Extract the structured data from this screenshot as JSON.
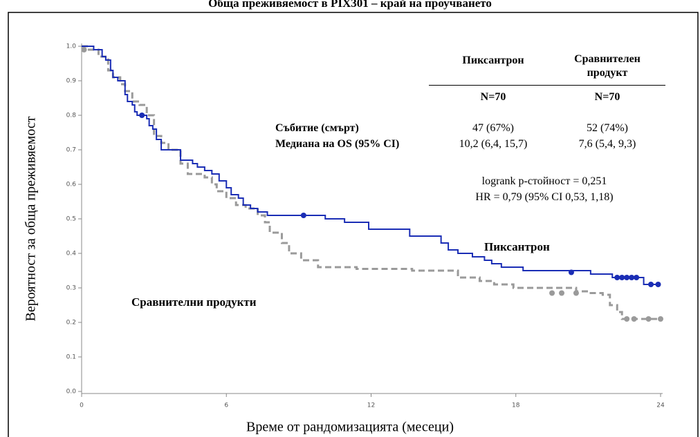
{
  "chart_data": {
    "type": "step",
    "title": "Обща преживяемост в PIX301 – край на проучването",
    "xlabel": "Време от рандомизацията (месеци)",
    "ylabel": "Вероятност за обща преживяемост",
    "xlim": [
      0,
      24
    ],
    "xticks": [
      0,
      6,
      12,
      18,
      24
    ],
    "ylim": [
      0,
      1
    ],
    "yticks": [
      {
        "value": 0,
        "label": "0.0"
      },
      0.1,
      0.2,
      0.3,
      0.4,
      0.5,
      0.6,
      0.7,
      0.8,
      0.9,
      {
        "value": 1,
        "label": "1.0"
      }
    ],
    "series": [
      {
        "name": "Пиксантрон",
        "color": "#1a2db5",
        "style": "solid",
        "x": [
          0,
          0.5,
          0.85,
          1.0,
          1.2,
          1.3,
          1.5,
          1.8,
          1.9,
          2.1,
          2.2,
          2.3,
          2.7,
          2.8,
          2.95,
          3.1,
          3.3,
          4.1,
          4.6,
          4.8,
          5.1,
          5.4,
          5.7,
          6.0,
          6.2,
          6.5,
          6.7,
          7.0,
          7.3,
          7.7,
          10.1,
          10.9,
          11.9,
          13.6,
          14.9,
          15.2,
          15.6,
          16.2,
          16.7,
          17.0,
          17.4,
          18.3,
          21.1,
          22.0,
          23.3,
          24
        ],
        "values": [
          1.0,
          0.99,
          0.97,
          0.96,
          0.93,
          0.91,
          0.9,
          0.86,
          0.84,
          0.83,
          0.81,
          0.8,
          0.79,
          0.77,
          0.76,
          0.73,
          0.7,
          0.67,
          0.66,
          0.65,
          0.64,
          0.63,
          0.61,
          0.59,
          0.57,
          0.56,
          0.54,
          0.53,
          0.52,
          0.51,
          0.5,
          0.49,
          0.47,
          0.45,
          0.43,
          0.41,
          0.4,
          0.39,
          0.38,
          0.37,
          0.36,
          0.35,
          0.34,
          0.33,
          0.31,
          0.31
        ],
        "censor_x": [
          2.5,
          9.2,
          20.3,
          22.2,
          22.4,
          22.6,
          22.8,
          23.0,
          23.6,
          23.9
        ],
        "censor_values": [
          0.8,
          0.51,
          0.345,
          0.33,
          0.33,
          0.33,
          0.33,
          0.33,
          0.31,
          0.31
        ]
      },
      {
        "name": "Сравнителни продукти",
        "color": "#9a9a9a",
        "style": "dashed",
        "x": [
          0,
          0.3,
          0.7,
          1.1,
          1.3,
          1.6,
          1.8,
          2.1,
          2.4,
          2.7,
          3.0,
          3.3,
          3.6,
          4.1,
          4.4,
          5.1,
          5.4,
          5.6,
          6.0,
          6.4,
          6.8,
          7.3,
          7.6,
          7.8,
          8.3,
          8.6,
          9.1,
          9.8,
          11.4,
          13.7,
          15.6,
          16.5,
          17.1,
          17.9,
          20.5,
          21.0,
          21.6,
          21.9,
          22.2,
          22.4,
          24
        ],
        "values": [
          1.0,
          0.99,
          0.97,
          0.93,
          0.91,
          0.89,
          0.87,
          0.84,
          0.83,
          0.8,
          0.74,
          0.72,
          0.7,
          0.66,
          0.63,
          0.62,
          0.6,
          0.58,
          0.56,
          0.54,
          0.53,
          0.51,
          0.49,
          0.46,
          0.43,
          0.4,
          0.38,
          0.36,
          0.355,
          0.35,
          0.33,
          0.32,
          0.31,
          0.3,
          0.29,
          0.285,
          0.28,
          0.25,
          0.23,
          0.21,
          0.21
        ],
        "censor_x": [
          0.1,
          19.5,
          19.9,
          20.5,
          22.6,
          22.9,
          23.5,
          24
        ],
        "censor_values": [
          0.99,
          0.285,
          0.285,
          0.285,
          0.21,
          0.21,
          0.21,
          0.21
        ]
      }
    ],
    "table": {
      "headers": [
        "Пиксантрон",
        "Сравнителен продукт"
      ],
      "n": [
        "N=70",
        "N=70"
      ],
      "rows": [
        {
          "label": "Събитие (смърт)",
          "values": [
            "47 (67%)",
            "52 (74%)"
          ]
        },
        {
          "label": "Медиана на OS (95% CI)",
          "values": [
            "10,2 (6,4, 15,7)",
            "7,6 (5,4, 9,3)"
          ]
        }
      ],
      "logrank": "logrank p-стойност = 0,251",
      "hr": "HR = 0,79 (95% CI 0,53, 1,18)"
    }
  }
}
